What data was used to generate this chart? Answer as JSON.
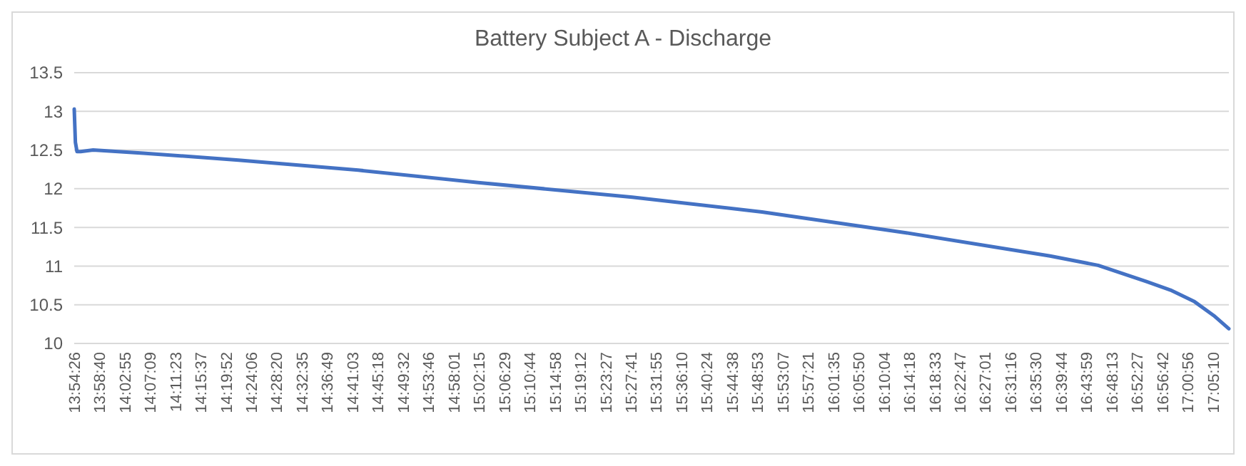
{
  "chart_data": {
    "type": "line",
    "title": "Battery Subject A - Discharge",
    "series": [
      {
        "color": "#4472c4",
        "x": [
          13.9072,
          13.9105,
          13.915,
          13.925,
          13.96,
          14.1,
          14.366,
          14.7,
          15.035,
          15.465,
          15.827,
          16.229,
          16.631,
          16.765,
          16.9,
          16.967,
          17.034,
          17.088,
          17.13
        ],
        "values": [
          13.03,
          12.6,
          12.48,
          12.48,
          12.5,
          12.46,
          12.37,
          12.24,
          12.08,
          11.89,
          11.7,
          11.43,
          11.13,
          11.01,
          10.8,
          10.69,
          10.54,
          10.36,
          10.19
        ]
      }
    ],
    "xlim": [
      13.9072,
      17.13
    ],
    "ylim": [
      10,
      13.5
    ],
    "yticks": [
      10,
      10.5,
      11,
      11.5,
      12,
      12.5,
      13,
      13.5
    ],
    "xticks": [
      {
        "value": 13.9072,
        "label": "13:54:26"
      },
      {
        "value": 13.9778,
        "label": "13:58:40"
      },
      {
        "value": 14.0486,
        "label": "14:02:55"
      },
      {
        "value": 14.1192,
        "label": "14:07:09"
      },
      {
        "value": 14.1897,
        "label": "14:11:23"
      },
      {
        "value": 14.2603,
        "label": "14:15:37"
      },
      {
        "value": 14.3311,
        "label": "14:19:52"
      },
      {
        "value": 14.4017,
        "label": "14:24:06"
      },
      {
        "value": 14.4722,
        "label": "14:28:20"
      },
      {
        "value": 14.5431,
        "label": "14:32:35"
      },
      {
        "value": 14.6136,
        "label": "14:36:49"
      },
      {
        "value": 14.6842,
        "label": "14:41:03"
      },
      {
        "value": 14.755,
        "label": "14:45:18"
      },
      {
        "value": 14.8256,
        "label": "14:49:32"
      },
      {
        "value": 14.8961,
        "label": "14:53:46"
      },
      {
        "value": 14.9669,
        "label": "14:58:01"
      },
      {
        "value": 15.0375,
        "label": "15:02:15"
      },
      {
        "value": 15.1081,
        "label": "15:06:29"
      },
      {
        "value": 15.1789,
        "label": "15:10:44"
      },
      {
        "value": 15.2494,
        "label": "15:14:58"
      },
      {
        "value": 15.32,
        "label": "15:19:12"
      },
      {
        "value": 15.3908,
        "label": "15:23:27"
      },
      {
        "value": 15.4614,
        "label": "15:27:41"
      },
      {
        "value": 15.5319,
        "label": "15:31:55"
      },
      {
        "value": 15.6028,
        "label": "15:36:10"
      },
      {
        "value": 15.6733,
        "label": "15:40:24"
      },
      {
        "value": 15.7439,
        "label": "15:44:38"
      },
      {
        "value": 15.8147,
        "label": "15:48:53"
      },
      {
        "value": 15.8853,
        "label": "15:53:07"
      },
      {
        "value": 15.9558,
        "label": "15:57:21"
      },
      {
        "value": 16.0264,
        "label": "16:01:35"
      },
      {
        "value": 16.0972,
        "label": "16:05:50"
      },
      {
        "value": 16.1678,
        "label": "16:10:04"
      },
      {
        "value": 16.2383,
        "label": "16:14:18"
      },
      {
        "value": 16.3092,
        "label": "16:18:33"
      },
      {
        "value": 16.3797,
        "label": "16:22:47"
      },
      {
        "value": 16.4503,
        "label": "16:27:01"
      },
      {
        "value": 16.5211,
        "label": "16:31:16"
      },
      {
        "value": 16.5917,
        "label": "16:35:30"
      },
      {
        "value": 16.6622,
        "label": "16:39:44"
      },
      {
        "value": 16.7331,
        "label": "16:43:59"
      },
      {
        "value": 16.8036,
        "label": "16:48:13"
      },
      {
        "value": 16.8742,
        "label": "16:52:27"
      },
      {
        "value": 16.945,
        "label": "16:56:42"
      },
      {
        "value": 17.0156,
        "label": "17:00:56"
      },
      {
        "value": 17.0861,
        "label": "17:05:10"
      }
    ],
    "grid": "y",
    "marker": "none",
    "line_style": "solid"
  }
}
